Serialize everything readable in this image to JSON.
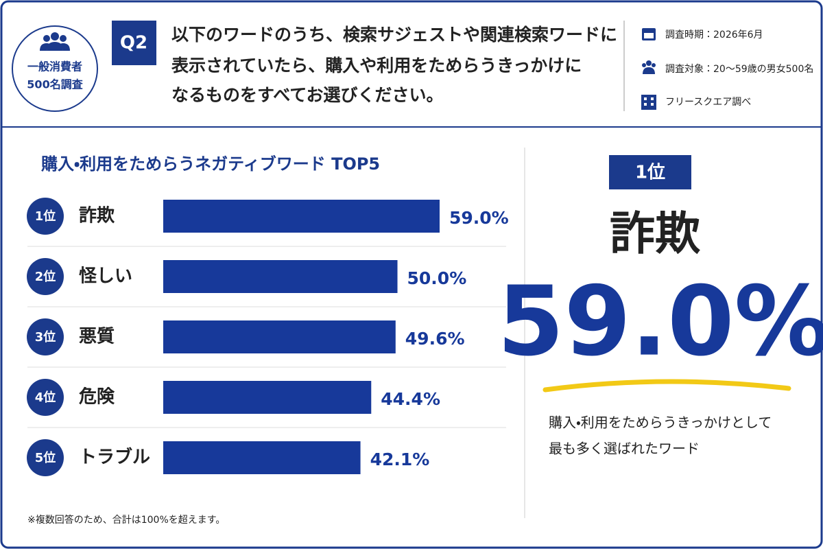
{
  "header": {
    "badge": [
      "一般消費者",
      "500名調査"
    ],
    "question_no": "Q2",
    "question": [
      "以下のワードのうち、検索サジェストや関連検索ワードに",
      "表示されていたら、購入や利用をためらうきっかけに",
      "なるものをすべてお選びください。"
    ],
    "info": [
      "調査時期：2026年6月",
      "調査対象：20〜59歳の男女500名",
      "フリースクエア調べ"
    ]
  },
  "chart_data": {
    "type": "bar",
    "orientation": "horizontal",
    "title": "購入・利用をためらうネガティブワード TOP5",
    "ranks": [
      "1位",
      "2位",
      "3位",
      "4位",
      "5位"
    ],
    "categories": [
      "詐欺",
      "怪しい",
      "悪質",
      "危険",
      "トラブル"
    ],
    "values": [
      59.0,
      50.0,
      49.6,
      44.4,
      42.1
    ],
    "value_labels": [
      "59.0%",
      "50.0%",
      "49.6%",
      "44.4%",
      "42.1%"
    ],
    "color": "#17399a"
  },
  "highlight": {
    "rank": "1位",
    "word": "詐欺",
    "value": "59.0%",
    "caption": [
      "購入・利用をためらうきっかけとして",
      "最も多く選ばれたワード"
    ]
  },
  "note": "※複数回答のため、合計は100%を超えます。"
}
